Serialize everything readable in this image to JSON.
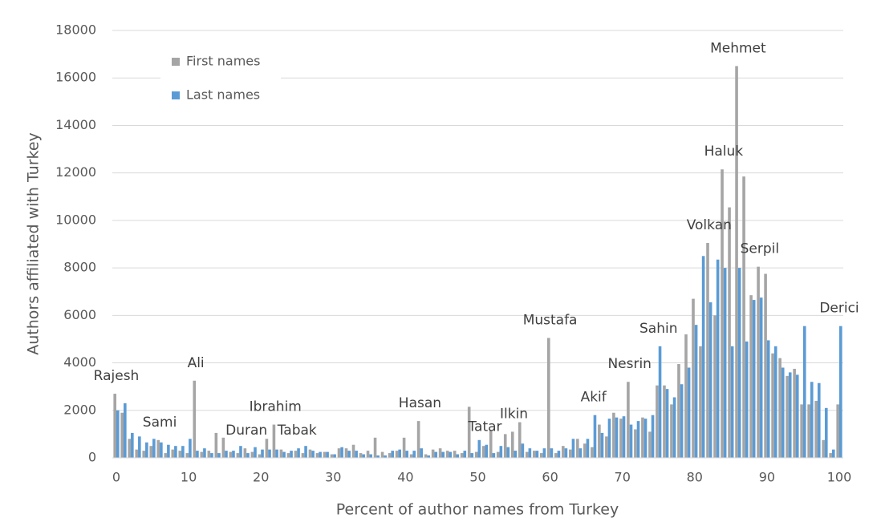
{
  "chart_data": {
    "type": "bar",
    "x_label": "Percent of author names from Turkey",
    "y_label": "Authors affiliated with Turkey",
    "x": [
      0,
      1,
      2,
      3,
      4,
      5,
      6,
      7,
      8,
      9,
      10,
      11,
      12,
      13,
      14,
      15,
      16,
      17,
      18,
      19,
      20,
      21,
      22,
      23,
      24,
      25,
      26,
      27,
      28,
      29,
      30,
      31,
      32,
      33,
      34,
      35,
      36,
      37,
      38,
      39,
      40,
      41,
      42,
      43,
      44,
      45,
      46,
      47,
      48,
      49,
      50,
      51,
      52,
      53,
      54,
      55,
      56,
      57,
      58,
      59,
      60,
      61,
      62,
      63,
      64,
      65,
      66,
      67,
      68,
      69,
      70,
      71,
      72,
      73,
      74,
      75,
      76,
      77,
      78,
      79,
      80,
      81,
      82,
      83,
      84,
      85,
      86,
      87,
      88,
      89,
      90,
      91,
      92,
      93,
      94,
      95,
      96,
      97,
      98,
      99,
      100
    ],
    "series": [
      {
        "name": "First names",
        "color": "#a5a5a5",
        "values": [
          2700,
          1900,
          800,
          350,
          300,
          500,
          750,
          200,
          350,
          300,
          200,
          3250,
          250,
          300,
          1050,
          850,
          250,
          200,
          400,
          250,
          150,
          800,
          1400,
          350,
          200,
          300,
          200,
          350,
          200,
          250,
          150,
          400,
          400,
          550,
          200,
          300,
          850,
          250,
          200,
          300,
          850,
          150,
          1550,
          150,
          350,
          400,
          300,
          300,
          200,
          2150,
          250,
          500,
          1150,
          250,
          1000,
          1100,
          1500,
          250,
          300,
          200,
          5050,
          200,
          500,
          350,
          800,
          600,
          450,
          1400,
          900,
          1900,
          1650,
          3200,
          1200,
          1700,
          1100,
          3050,
          3050,
          2250,
          3950,
          5200,
          6700,
          4700,
          9050,
          6000,
          12150,
          10550,
          16500,
          11850,
          6850,
          8050,
          7750,
          4400,
          4200,
          3450,
          3750,
          2250,
          2250,
          2400,
          750,
          200,
          2250
        ]
      },
      {
        "name": "Last names",
        "color": "#5b9bd5",
        "values": [
          2000,
          2300,
          1050,
          900,
          650,
          800,
          650,
          550,
          500,
          500,
          800,
          300,
          400,
          200,
          200,
          300,
          300,
          500,
          200,
          450,
          350,
          350,
          350,
          250,
          300,
          400,
          500,
          300,
          250,
          250,
          150,
          450,
          300,
          300,
          150,
          150,
          100,
          100,
          300,
          350,
          300,
          300,
          400,
          100,
          250,
          250,
          250,
          150,
          300,
          200,
          750,
          550,
          200,
          500,
          450,
          300,
          600,
          400,
          300,
          400,
          400,
          300,
          400,
          800,
          400,
          800,
          1800,
          1050,
          1650,
          1700,
          1750,
          1400,
          1550,
          1650,
          1800,
          4700,
          2900,
          2550,
          3100,
          3800,
          5600,
          8500,
          6550,
          8350,
          8000,
          4700,
          8000,
          4900,
          6650,
          6750,
          4950,
          4700,
          3800,
          3600,
          3500,
          5550,
          3200,
          3150,
          2100,
          350,
          5550
        ]
      }
    ],
    "annotations": [
      {
        "text": "Rajesh",
        "x": 0
      },
      {
        "text": "Sami",
        "x": 6
      },
      {
        "text": "Ali",
        "x": 11
      },
      {
        "text": "Duran",
        "x": 18
      },
      {
        "text": "Ibrahim",
        "x": 22
      },
      {
        "text": "Tabak",
        "x": 25
      },
      {
        "text": "Hasan",
        "x": 42
      },
      {
        "text": "Tatar",
        "x": 51
      },
      {
        "text": "Ilkin",
        "x": 55
      },
      {
        "text": "Mustafa",
        "x": 60
      },
      {
        "text": "Akif",
        "x": 66
      },
      {
        "text": "Nesrin",
        "x": 71
      },
      {
        "text": "Sahin",
        "x": 75
      },
      {
        "text": "Volkan",
        "x": 82
      },
      {
        "text": "Haluk",
        "x": 84
      },
      {
        "text": "Mehmet",
        "x": 86
      },
      {
        "text": "Serpil",
        "x": 89
      },
      {
        "text": "Derici",
        "x": 100
      }
    ],
    "xlim": [
      0,
      100
    ],
    "xticks": [
      0,
      10,
      20,
      30,
      40,
      50,
      60,
      70,
      80,
      90,
      100
    ],
    "ylim": [
      0,
      18000
    ],
    "yticks": [
      0,
      2000,
      4000,
      6000,
      8000,
      10000,
      12000,
      14000,
      16000,
      18000
    ],
    "grid": true,
    "legend": "upper left"
  }
}
